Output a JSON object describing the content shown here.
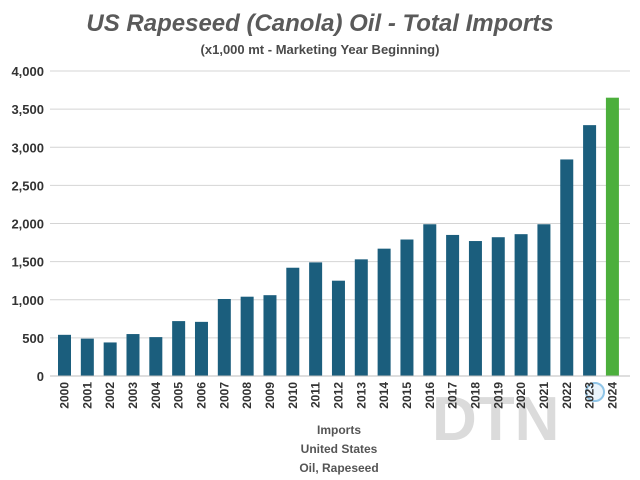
{
  "chart_data": {
    "type": "bar",
    "title": "US Rapeseed (Canola) Oil - Total Imports",
    "subtitle": "(x1,000 mt - Marketing Year Beginning)",
    "xlabel": "",
    "ylabel": "",
    "categories": [
      "2000",
      "2001",
      "2002",
      "2003",
      "2004",
      "2005",
      "2006",
      "2007",
      "2008",
      "2009",
      "2010",
      "2011",
      "2012",
      "2013",
      "2014",
      "2015",
      "2016",
      "2017",
      "2018",
      "2019",
      "2020",
      "2021",
      "2022",
      "2023",
      "2024"
    ],
    "values": [
      540,
      490,
      440,
      550,
      510,
      720,
      710,
      1010,
      1040,
      1060,
      1420,
      1490,
      1250,
      1530,
      1670,
      1790,
      1990,
      1850,
      1770,
      1820,
      1860,
      1990,
      2840,
      3290,
      3650
    ],
    "ylim": [
      0,
      4000
    ],
    "yticks": [
      0,
      500,
      1000,
      1500,
      2000,
      2500,
      3000,
      3500,
      4000
    ],
    "ytick_labels": [
      "0",
      "500",
      "1,000",
      "1,500",
      "2,000",
      "2,500",
      "3,000",
      "3,500",
      "4,000"
    ],
    "grid": true,
    "colors": {
      "default": "#1b5e7d",
      "highlight": "#4caf3c",
      "highlight_index": 24
    },
    "footer_lines": [
      "Imports",
      "United States",
      "Oil, Rapeseed"
    ]
  },
  "watermark": {
    "text": "DTN",
    "colors": [
      "#d9d9d9",
      "#8fc5e8",
      "#a6d68a"
    ]
  }
}
